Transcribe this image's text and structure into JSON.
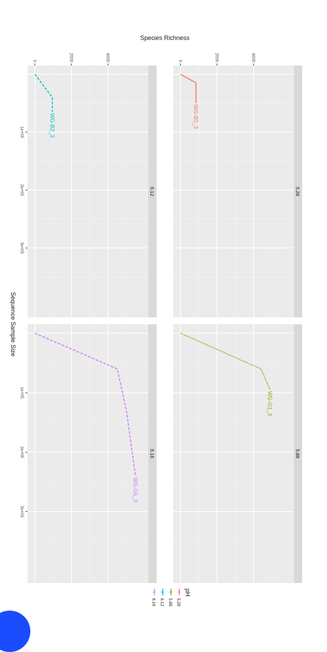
{
  "chart_data": {
    "type": "line",
    "orientation": "rotated-90-clockwise",
    "ylabel": "Species Richness",
    "xlabel": "Sequence Sample Size",
    "x_ticks": [
      {
        "value": 100000,
        "label": "1e+05"
      },
      {
        "value": 200000,
        "label": "2e+05"
      },
      {
        "value": 300000,
        "label": "3e+05"
      }
    ],
    "y_ticks": [
      {
        "value": 0,
        "label": "0"
      },
      {
        "value": 2000,
        "label": "2000"
      },
      {
        "value": 4000,
        "label": "4000"
      }
    ],
    "xlim": [
      -15000,
      420000
    ],
    "ylim": [
      -400,
      6200
    ],
    "legend": {
      "title": "pH",
      "position": "bottom-left",
      "items": [
        {
          "label": "5.28",
          "color": "#F8766D"
        },
        {
          "label": "5.88",
          "color": "#7CAE00"
        },
        {
          "label": "6.12",
          "color": "#00BFC4"
        },
        {
          "label": "6.16",
          "color": "#C77CFF"
        }
      ]
    },
    "panels": [
      {
        "strip": "5.28",
        "row": 0,
        "col": 0,
        "color": "#F8766D",
        "dash": "solid",
        "end_label": "WG-B3_3",
        "x": [
          0,
          15000,
          50000
        ],
        "y": [
          0,
          850,
          850
        ]
      },
      {
        "strip": "5.88",
        "row": 0,
        "col": 1,
        "color": "#7CAE00",
        "dash": "dotted",
        "end_label": "WG-G1_3",
        "x": [
          0,
          60000,
          95000
        ],
        "y": [
          0,
          4400,
          4900
        ]
      },
      {
        "strip": "6.12",
        "row": 1,
        "col": 0,
        "color": "#00BFC4",
        "dash": "dashed",
        "end_label": "WG-B2_3",
        "x": [
          0,
          40000,
          65000
        ],
        "y": [
          0,
          950,
          950
        ]
      },
      {
        "strip": "6.16",
        "row": 1,
        "col": 1,
        "color": "#C77CFF",
        "dash": "dashed",
        "end_label": "WG-G5_3",
        "x": [
          0,
          60000,
          130000,
          240000
        ],
        "y": [
          0,
          4500,
          5000,
          5500
        ]
      }
    ]
  }
}
